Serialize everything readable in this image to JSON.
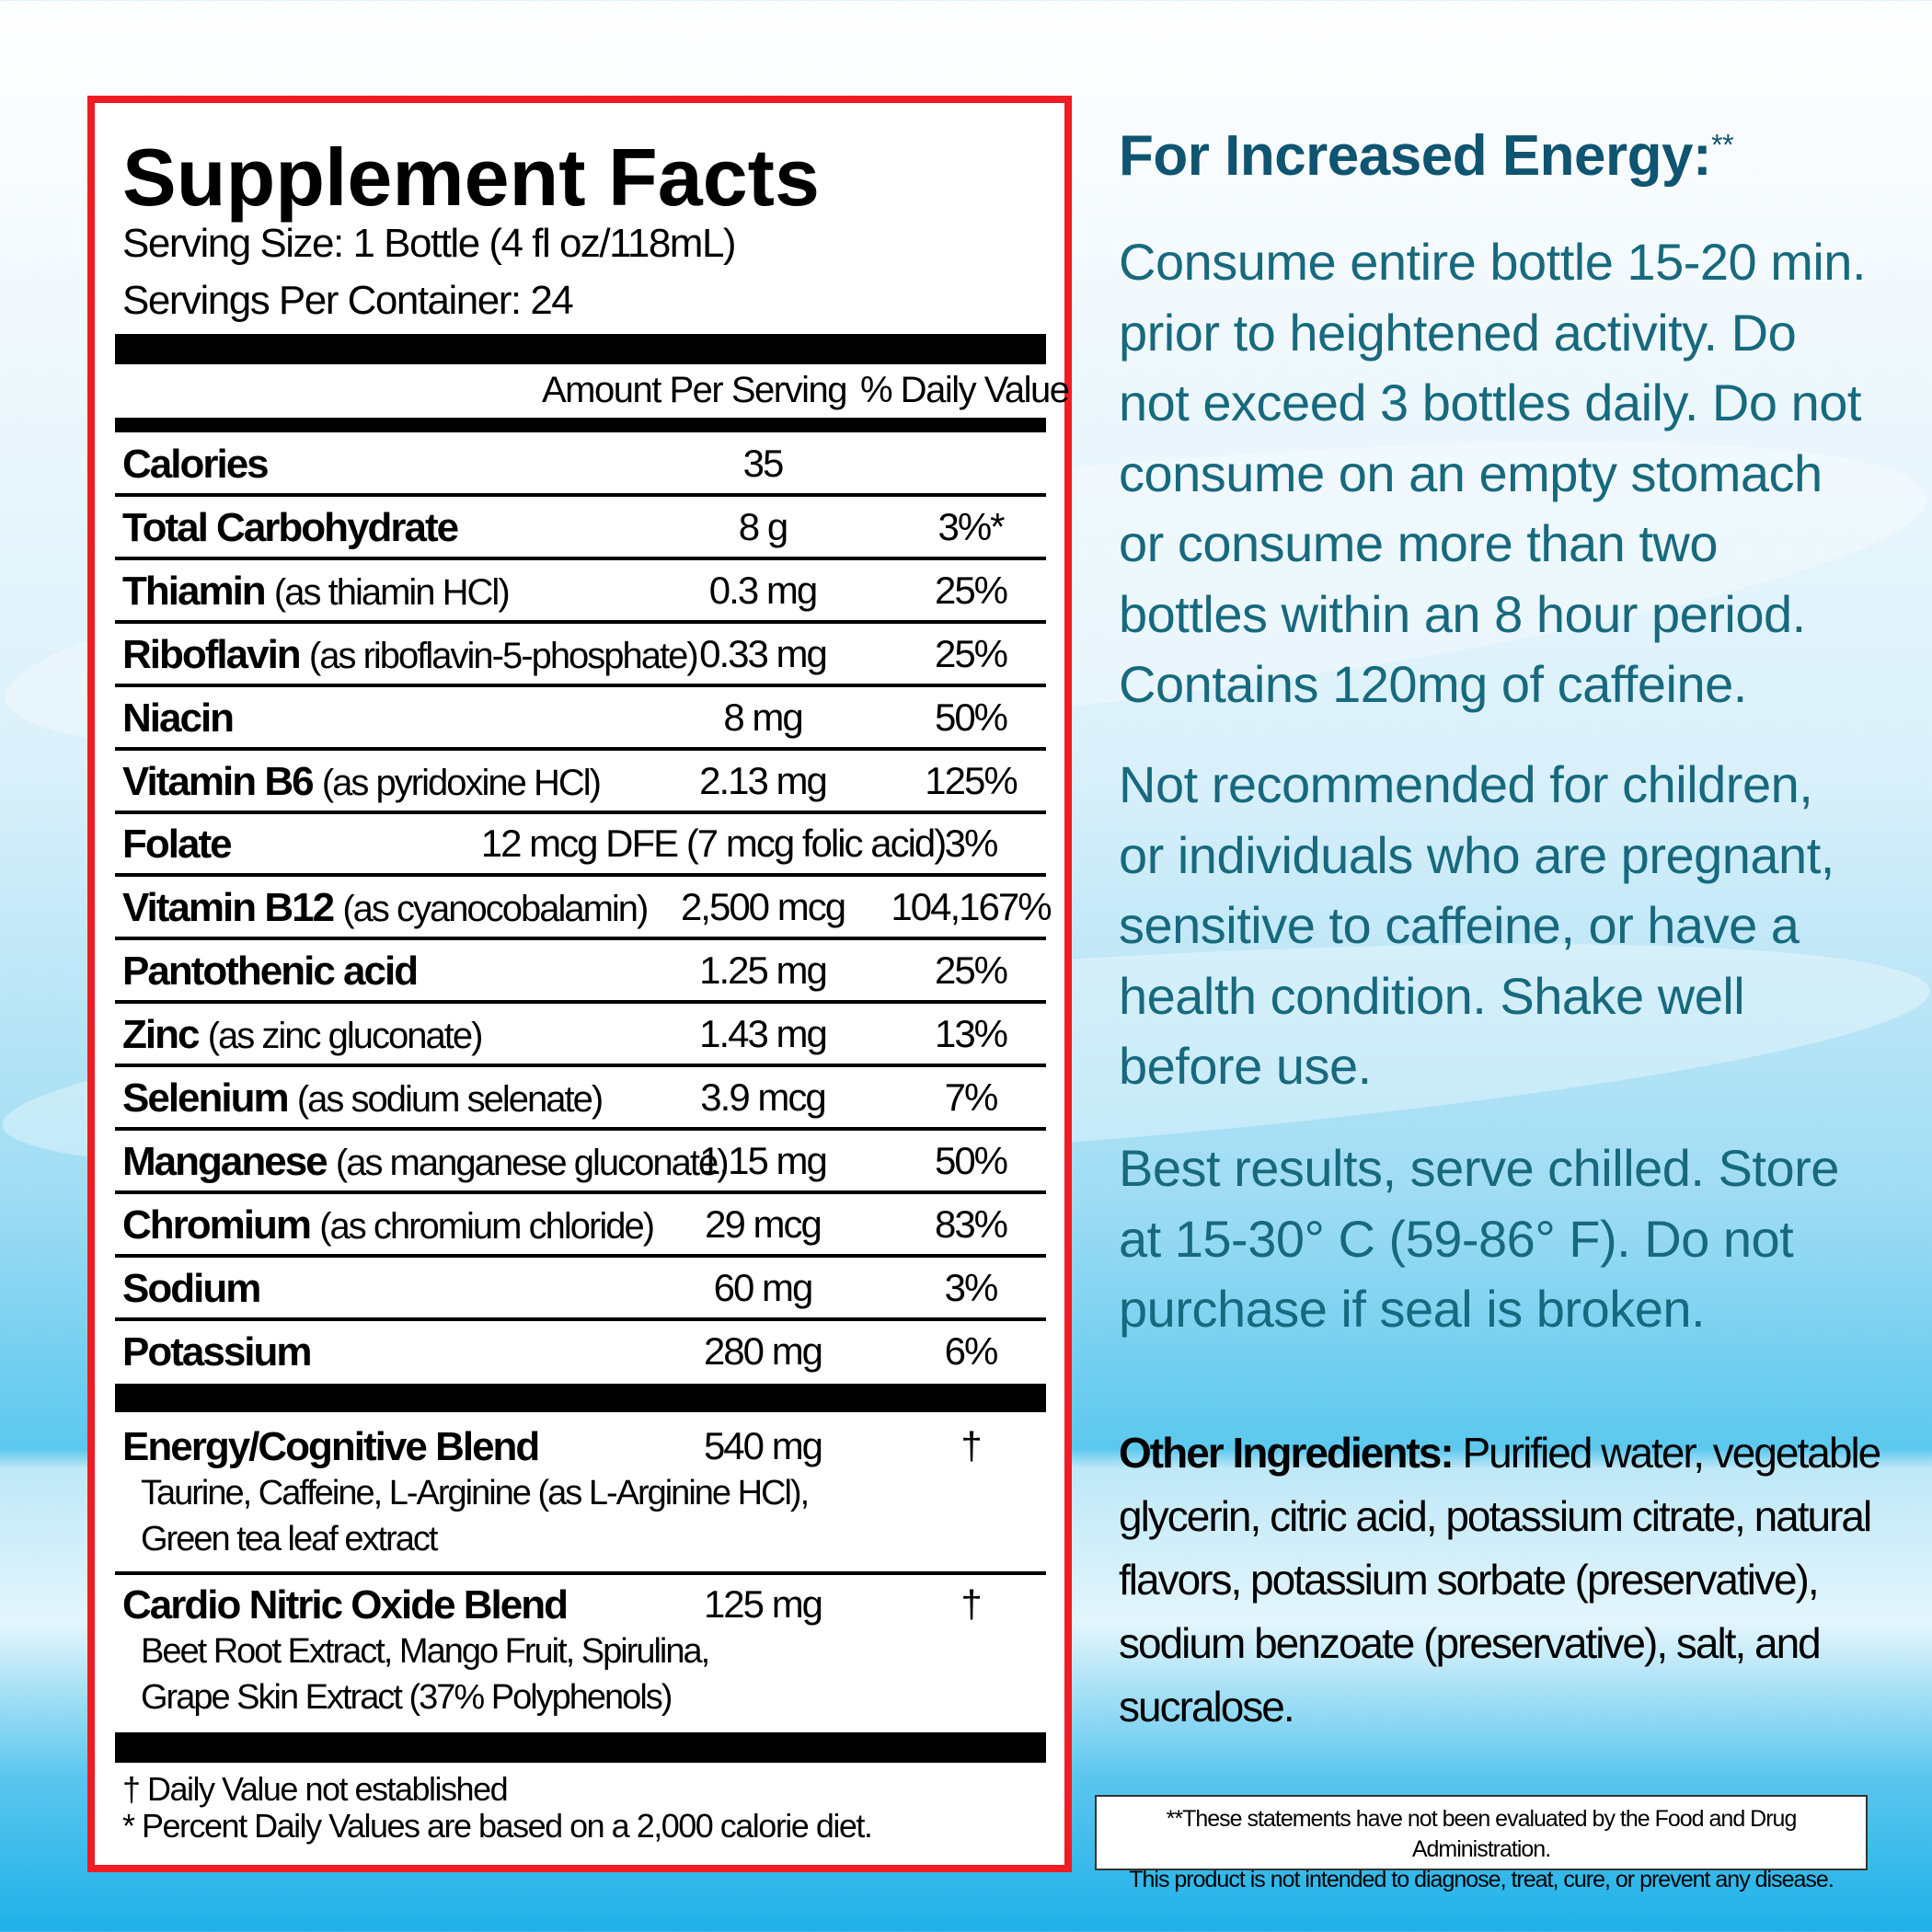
{
  "facts": {
    "title": "Supplement Facts",
    "serving_size": "Serving Size: 1 Bottle (4 fl oz/118mL)",
    "servings_per_container": "Servings Per Container: 24",
    "col_amount": "Amount Per Serving",
    "col_dv": "% Daily Value",
    "rows": [
      {
        "name": "Calories",
        "detail": "",
        "amount": "35",
        "dv": ""
      },
      {
        "name": "Total Carbohydrate",
        "detail": "",
        "amount": "8 g",
        "dv": "3%*"
      },
      {
        "name": "Thiamin",
        "detail": "(as thiamin HCl)",
        "amount": "0.3 mg",
        "dv": "25%"
      },
      {
        "name": "Riboflavin",
        "detail": "(as riboflavin-5-phosphate)",
        "amount": "0.33 mg",
        "dv": "25%"
      },
      {
        "name": "Niacin",
        "detail": "",
        "amount": "8 mg",
        "dv": "50%"
      },
      {
        "name": "Vitamin B6",
        "detail": "(as pyridoxine HCl)",
        "amount": "2.13 mg",
        "dv": "125%"
      },
      {
        "name": "Folate",
        "detail": "",
        "amount": "12 mcg DFE (7 mcg folic acid)",
        "dv": "3%"
      },
      {
        "name": "Vitamin B12",
        "detail": "(as cyanocobalamin)",
        "amount": "2,500 mcg",
        "dv": "104,167%"
      },
      {
        "name": "Pantothenic acid",
        "detail": "",
        "amount": "1.25 mg",
        "dv": "25%"
      },
      {
        "name": "Zinc",
        "detail": "(as zinc gluconate)",
        "amount": "1.43 mg",
        "dv": "13%"
      },
      {
        "name": "Selenium",
        "detail": "(as sodium selenate)",
        "amount": "3.9 mcg",
        "dv": "7%"
      },
      {
        "name": "Manganese",
        "detail": "(as manganese gluconate)",
        "amount": "1.15 mg",
        "dv": "50%"
      },
      {
        "name": "Chromium",
        "detail": "(as chromium chloride)",
        "amount": "29 mcg",
        "dv": "83%"
      },
      {
        "name": "Sodium",
        "detail": "",
        "amount": "60 mg",
        "dv": "3%"
      },
      {
        "name": "Potassium",
        "detail": "",
        "amount": "280 mg",
        "dv": "6%"
      }
    ],
    "blends": [
      {
        "name": "Energy/Cognitive Blend",
        "amount": "540 mg",
        "dv": "†",
        "lines": [
          "Taurine, Caffeine, L-Arginine (as L-Arginine HCl),",
          "Green tea leaf extract"
        ]
      },
      {
        "name": "Cardio Nitric Oxide Blend",
        "amount": "125 mg",
        "dv": "†",
        "lines": [
          "Beet Root Extract, Mango Fruit, Spirulina,",
          "Grape Skin Extract (37% Polyphenols)"
        ]
      }
    ],
    "footnote_dagger": "† Daily Value not established",
    "footnote_star": "* Percent Daily Values are based on a 2,000 calorie diet."
  },
  "directions": {
    "heading": "For Increased Energy:",
    "heading_mark": "**",
    "para1": [
      "Consume entire bottle 15-20 min.",
      "prior to heightened activity. Do",
      "not exceed 3 bottles daily. Do not",
      "consume on an empty stomach",
      "or consume more than two",
      "bottles within an 8 hour period.",
      "Contains 120mg of caffeine."
    ],
    "para2": [
      "Not recommended for children,",
      "or individuals who are pregnant,",
      "sensitive to caffeine, or have a",
      "health condition. Shake well",
      "before use."
    ],
    "para3": [
      "Best results, serve chilled. Store",
      "at 15-30° C (59-86° F). Do not",
      "purchase if seal is broken."
    ]
  },
  "other_ingredients": {
    "label": "Other Ingredients:",
    "lines": [
      " Purified water, vegetable",
      "glycerin, citric acid, potassium citrate, natural",
      "flavors, potassium sorbate (preservative),",
      "sodium benzoate (preservative), salt, and",
      "sucralose."
    ]
  },
  "disclaimer": [
    "**These statements have not been evaluated by the Food and Drug Administration.",
    "This product is not intended to diagnose, treat, cure, or prevent any disease."
  ],
  "colors": {
    "border": "#ef1c24",
    "text_teal": "#17697e",
    "heading_teal": "#0f5470"
  }
}
